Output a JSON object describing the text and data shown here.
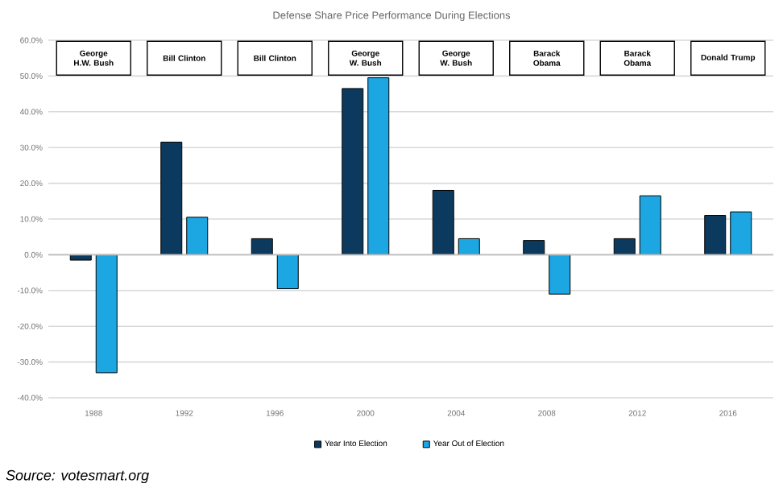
{
  "chart_data": {
    "type": "bar",
    "title": "Defense Share Price Performance During Elections",
    "categories": [
      "1988",
      "1992",
      "1996",
      "2000",
      "2004",
      "2008",
      "2012",
      "2016"
    ],
    "series": [
      {
        "name": "Year Into Election",
        "color": "#0c3a5e",
        "values": [
          -1.5,
          31.5,
          4.5,
          46.5,
          18,
          4,
          4.5,
          11
        ]
      },
      {
        "name": "Year Out of Election",
        "color": "#1ca6e2",
        "values": [
          -33,
          10.5,
          -9.5,
          49.5,
          4.5,
          -11,
          16.5,
          12
        ]
      }
    ],
    "ylim": [
      -40,
      60
    ],
    "yticks": [
      {
        "value": -40,
        "label": "-40.0%"
      },
      {
        "value": -30,
        "label": "-30.0%"
      },
      {
        "value": -20,
        "label": "-20.0%"
      },
      {
        "value": -10,
        "label": "-10.0%"
      },
      {
        "value": 0,
        "label": "0.0%"
      },
      {
        "value": 10,
        "label": "10.0%"
      },
      {
        "value": 20,
        "label": "20.0%"
      },
      {
        "value": 30,
        "label": "30.0%"
      },
      {
        "value": 40,
        "label": "40.0%"
      },
      {
        "value": 50,
        "label": "50.0%"
      },
      {
        "value": 60,
        "label": "60.0%"
      }
    ],
    "grid": "y",
    "legend": "bottom",
    "annotations": [
      "George H.W. Bush",
      "Bill Clinton",
      "Bill Clinton",
      "George W. Bush",
      "George W. Bush",
      "Barack Obama",
      "Barack Obama",
      "Donald Trump",
      "Source: votesmart.org"
    ]
  }
}
